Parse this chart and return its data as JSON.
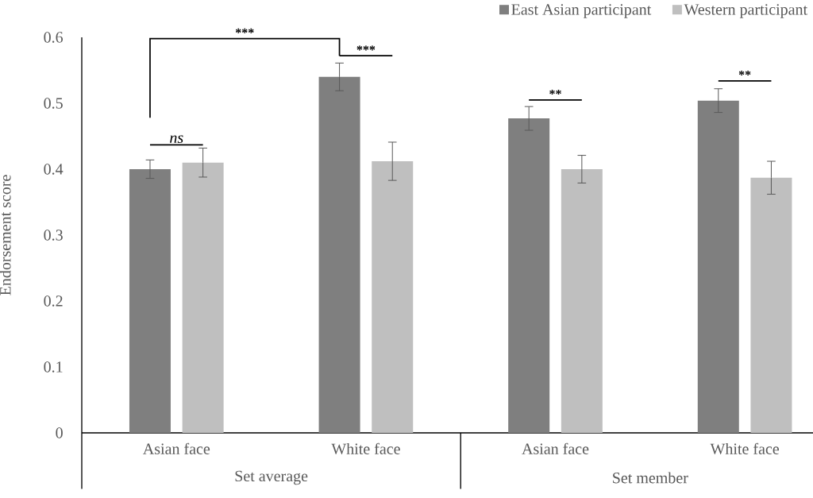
{
  "chart_data": {
    "type": "bar",
    "ylabel": "Endorsement score",
    "categories": [
      "Asian face",
      "White face",
      "Asian face",
      "White face"
    ],
    "series": [
      {
        "name": "East Asian participant",
        "color": "#7f7f7f",
        "values": [
          0.4,
          0.54,
          0.477,
          0.504
        ],
        "errors": [
          0.014,
          0.021,
          0.018,
          0.018
        ]
      },
      {
        "name": "Western participant",
        "color": "#bfbfbf",
        "values": [
          0.41,
          0.412,
          0.4,
          0.387
        ],
        "errors": [
          0.022,
          0.029,
          0.021,
          0.025
        ]
      }
    ],
    "ylim": [
      0,
      0.6
    ],
    "yticks": [
      0,
      0.1,
      0.2,
      0.3,
      0.4,
      0.5,
      0.6
    ],
    "legend": "top right",
    "annotations": [
      "ns",
      "***",
      "***",
      "**",
      "**",
      "Set average",
      "Set member"
    ]
  }
}
